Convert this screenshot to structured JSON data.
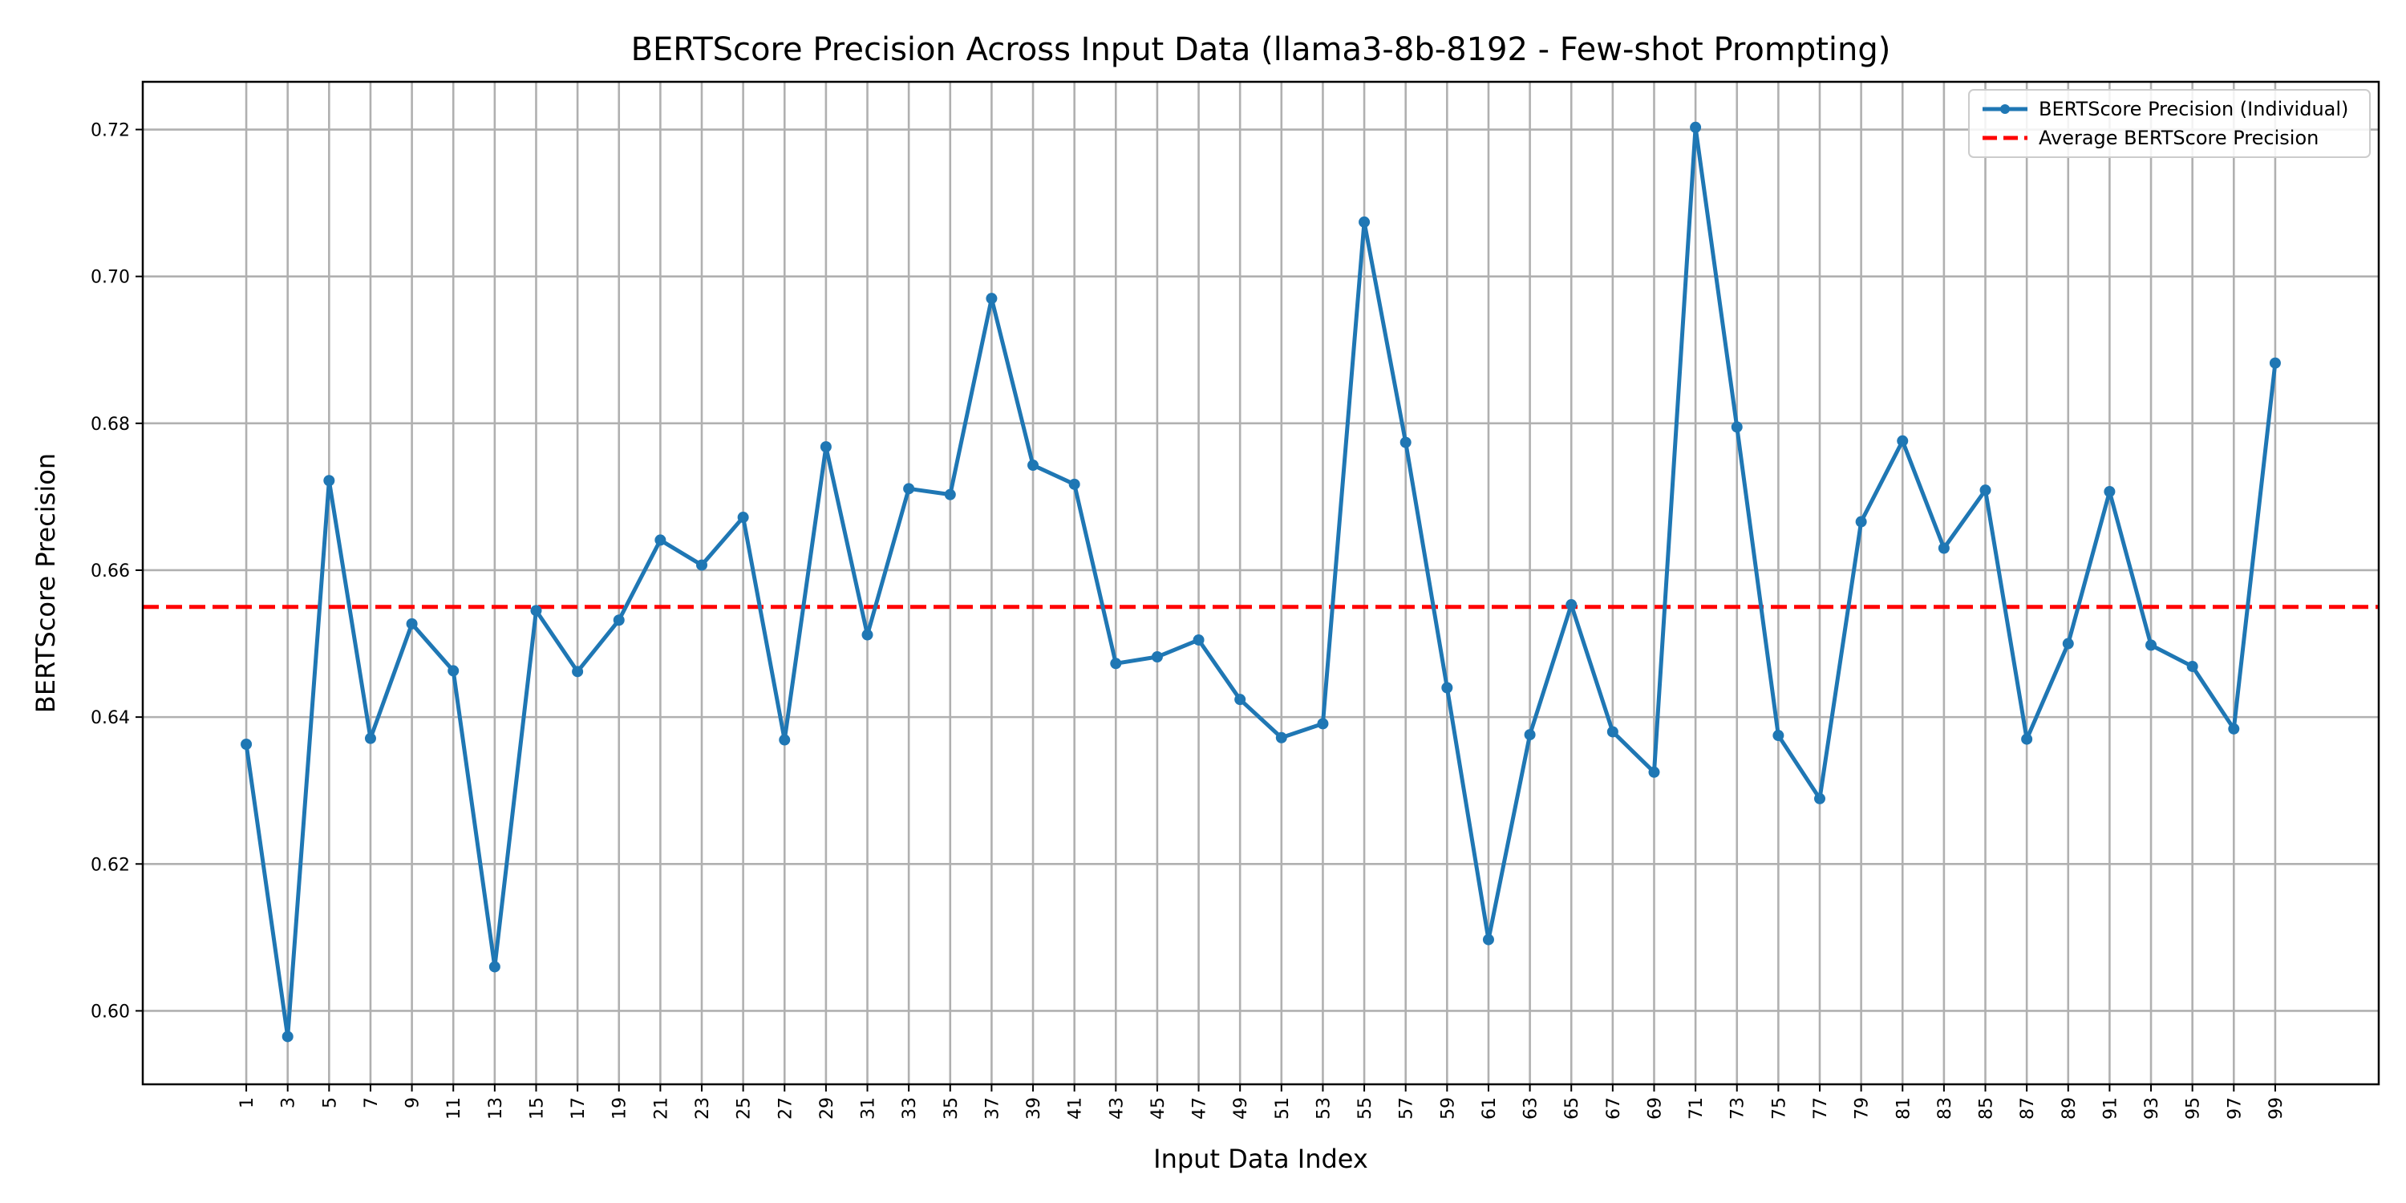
{
  "chart_data": {
    "type": "line",
    "title": "BERTScore Precision Across Input Data (llama3-8b-8192 - Few-shot Prompting)",
    "xlabel": "Input Data Index",
    "ylabel": "BERTScore Precision",
    "x": [
      1,
      3,
      5,
      7,
      9,
      11,
      13,
      15,
      17,
      19,
      21,
      23,
      25,
      27,
      29,
      31,
      33,
      35,
      37,
      39,
      41,
      43,
      45,
      47,
      49,
      51,
      53,
      55,
      57,
      59,
      61,
      63,
      65,
      67,
      69,
      71,
      73,
      75,
      77,
      79,
      81,
      83,
      85,
      87,
      89,
      91,
      93,
      95,
      97,
      99
    ],
    "xticks": [
      "1",
      "3",
      "5",
      "7",
      "9",
      "11",
      "13",
      "15",
      "17",
      "19",
      "21",
      "23",
      "25",
      "27",
      "29",
      "31",
      "33",
      "35",
      "37",
      "39",
      "41",
      "43",
      "45",
      "47",
      "49",
      "51",
      "53",
      "55",
      "57",
      "59",
      "61",
      "63",
      "65",
      "67",
      "69",
      "71",
      "73",
      "75",
      "77",
      "79",
      "81",
      "83",
      "85",
      "87",
      "89",
      "91",
      "93",
      "95",
      "97",
      "99"
    ],
    "xlim": [
      -4.0,
      104.0
    ],
    "ylim": [
      0.59,
      0.7265
    ],
    "yticks": [
      0.6,
      0.62,
      0.64,
      0.66,
      0.68,
      0.7,
      0.72
    ],
    "ytick_labels": [
      "0.60",
      "0.62",
      "0.64",
      "0.66",
      "0.68",
      "0.70",
      "0.72"
    ],
    "grid": true,
    "legend_position": "top-right",
    "series": [
      {
        "name": "BERTScore Precision (Individual)",
        "color": "#1f77b4",
        "style": "solid-with-markers",
        "values": [
          0.6363,
          0.5965,
          0.6722,
          0.6371,
          0.6527,
          0.6463,
          0.606,
          0.6545,
          0.6462,
          0.6532,
          0.6641,
          0.6607,
          0.6672,
          0.6369,
          0.6768,
          0.6512,
          0.6711,
          0.6703,
          0.697,
          0.6743,
          0.6717,
          0.6473,
          0.6482,
          0.6505,
          0.6424,
          0.6372,
          0.6391,
          0.7074,
          0.6774,
          0.644,
          0.6097,
          0.6376,
          0.6553,
          0.638,
          0.6325,
          0.7203,
          0.6795,
          0.6375,
          0.6289,
          0.6666,
          0.6776,
          0.663,
          0.6709,
          0.637,
          0.65,
          0.6707,
          0.6498,
          0.6469,
          0.6384,
          0.6882
        ]
      },
      {
        "name": "Average BERTScore Precision",
        "color": "#ff0000",
        "style": "dashed",
        "value": 0.655
      }
    ]
  }
}
